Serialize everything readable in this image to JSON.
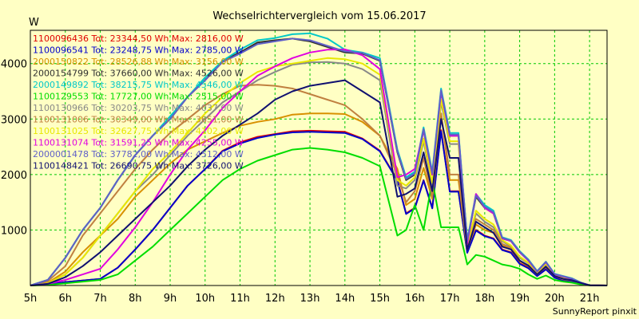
{
  "chart_data": {
    "type": "line",
    "title": "Wechselrichtervergleich vom 15.06.2017",
    "ylabel": "W",
    "footer": "SunnyReport pinxit",
    "ylim": [
      0,
      4600
    ],
    "yticks": [
      1000,
      2000,
      3000,
      4000
    ],
    "xlim": [
      5,
      21.5
    ],
    "xticks": [
      "5h",
      "6h",
      "7h",
      "8h",
      "9h",
      "10h",
      "11h",
      "12h",
      "13h",
      "14h",
      "15h",
      "16h",
      "17h",
      "18h",
      "19h",
      "20h",
      "21h"
    ],
    "grid": true,
    "legend_position": "top-left",
    "x": [
      5,
      5.5,
      6,
      6.5,
      7,
      7.5,
      8,
      8.5,
      9,
      9.5,
      10,
      10.5,
      11,
      11.5,
      12,
      12.5,
      13,
      13.5,
      14,
      14.5,
      15,
      15.5,
      15.75,
      16,
      16.25,
      16.5,
      16.75,
      17,
      17.25,
      17.5,
      17.75,
      18,
      18.25,
      18.5,
      18.75,
      19,
      19.25,
      19.5,
      19.75,
      20,
      20.25,
      20.5,
      20.75,
      21,
      21.5
    ],
    "series": [
      {
        "name": "1100096436",
        "color": "#e00000",
        "legend": "1100096436 Tot: 23344,50 Wh Max: 2816,00 W",
        "values": [
          0,
          20,
          60,
          90,
          120,
          320,
          650,
          1000,
          1400,
          1800,
          2100,
          2430,
          2580,
          2680,
          2730,
          2780,
          2790,
          2780,
          2770,
          2650,
          2430,
          1900,
          1300,
          1400,
          1900,
          1400,
          2800,
          1700,
          1700,
          600,
          1000,
          900,
          850,
          650,
          600,
          400,
          320,
          180,
          300,
          150,
          100,
          80,
          40,
          5,
          0
        ]
      },
      {
        "name": "1100096541",
        "color": "#0000cc",
        "legend": "1100096541 Tot: 23248,75 Wh Max: 2785,00 W",
        "values": [
          0,
          20,
          60,
          90,
          120,
          320,
          650,
          1000,
          1400,
          1800,
          2100,
          2420,
          2560,
          2660,
          2720,
          2760,
          2770,
          2760,
          2750,
          2640,
          2420,
          1890,
          1290,
          1390,
          1890,
          1390,
          2780,
          1690,
          1690,
          590,
          990,
          890,
          840,
          640,
          590,
          390,
          310,
          170,
          290,
          140,
          90,
          70,
          30,
          5,
          0
        ]
      },
      {
        "name": "2000150822",
        "color": "#d89000",
        "legend": "2000150822 Tot: 28526,88 Wh Max: 3156,00 W",
        "values": [
          0,
          50,
          250,
          600,
          900,
          1200,
          1600,
          1900,
          2200,
          2450,
          2600,
          2750,
          2880,
          2950,
          3000,
          3080,
          3100,
          3100,
          3090,
          2950,
          2700,
          2100,
          1450,
          1560,
          2120,
          1560,
          3100,
          1900,
          1900,
          650,
          1100,
          1000,
          950,
          720,
          660,
          440,
          350,
          200,
          330,
          170,
          110,
          90,
          45,
          5,
          0
        ]
      },
      {
        "name": "2000154799",
        "color": "#303030",
        "legend": "2000154799 Tot: 37660,00 Wh Max: 4526,00 W",
        "values": [
          0,
          100,
          500,
          1000,
          1400,
          1900,
          2350,
          2700,
          3000,
          3400,
          3700,
          4050,
          4200,
          4380,
          4420,
          4450,
          4400,
          4300,
          4200,
          4180,
          4050,
          2400,
          1900,
          2000,
          2800,
          2000,
          3500,
          2700,
          2700,
          800,
          1600,
          1400,
          1300,
          850,
          800,
          600,
          450,
          250,
          420,
          200,
          160,
          120,
          50,
          5,
          0
        ]
      },
      {
        "name": "2000149892",
        "color": "#00c8c8",
        "legend": "2000149892 Tot: 38215,75 Wh Max: 4546,00 W",
        "values": [
          0,
          100,
          500,
          1000,
          1400,
          1900,
          2350,
          2700,
          3050,
          3400,
          3750,
          4050,
          4250,
          4420,
          4460,
          4530,
          4546,
          4450,
          4250,
          4200,
          4100,
          2450,
          1950,
          2050,
          2850,
          2050,
          3550,
          2750,
          2750,
          820,
          1650,
          1450,
          1350,
          870,
          820,
          620,
          470,
          260,
          430,
          210,
          170,
          130,
          55,
          5,
          0
        ]
      },
      {
        "name": "1100129553",
        "color": "#00dd00",
        "legend": "1100129553 Tot: 17727,00 Wh Max: 2515,00 W",
        "values": [
          0,
          10,
          40,
          70,
          100,
          200,
          450,
          700,
          1000,
          1300,
          1600,
          1900,
          2100,
          2250,
          2350,
          2450,
          2480,
          2450,
          2400,
          2300,
          2150,
          900,
          1000,
          1450,
          1000,
          1900,
          1050,
          1050,
          1050,
          380,
          550,
          520,
          450,
          380,
          350,
          300,
          200,
          120,
          180,
          100,
          70,
          50,
          20,
          2,
          0
        ]
      },
      {
        "name": "1100130966",
        "color": "#888888",
        "legend": "1100130966 Tot: 30203,75 Wh Max: 4037,00 W",
        "values": [
          0,
          40,
          200,
          500,
          900,
          1300,
          1700,
          2000,
          2350,
          2700,
          3000,
          3300,
          3500,
          3700,
          3850,
          3980,
          4020,
          4030,
          4000,
          3900,
          3700,
          1800,
          1750,
          1900,
          2600,
          1800,
          3300,
          2550,
          2550,
          700,
          1300,
          1150,
          1050,
          800,
          700,
          500,
          400,
          220,
          380,
          180,
          140,
          100,
          45,
          5,
          0
        ]
      },
      {
        "name": "1100131006",
        "color": "#c08040",
        "legend": "1100131006 Tot: 30349,00 Wh Max: 3651,00 W",
        "values": [
          0,
          80,
          350,
          900,
          1300,
          1700,
          2100,
          2450,
          2750,
          3000,
          3250,
          3450,
          3600,
          3620,
          3600,
          3550,
          3450,
          3350,
          3250,
          3000,
          2700,
          2000,
          1500,
          1700,
          2300,
          1600,
          3100,
          2000,
          2000,
          650,
          1200,
          1100,
          1000,
          750,
          680,
          450,
          360,
          200,
          340,
          170,
          120,
          95,
          45,
          5,
          0
        ]
      },
      {
        "name": "1100131025",
        "color": "#e8e800",
        "legend": "1100131025 Tot: 32627,75 Wh Max: 4102,00 W",
        "values": [
          0,
          40,
          200,
          500,
          900,
          1300,
          1700,
          2100,
          2400,
          2750,
          3100,
          3400,
          3650,
          3850,
          3950,
          4000,
          4050,
          4100,
          4080,
          4000,
          3800,
          1900,
          1800,
          1950,
          2650,
          1850,
          3350,
          2600,
          2600,
          720,
          1350,
          1200,
          1100,
          820,
          720,
          520,
          410,
          230,
          390,
          190,
          150,
          110,
          48,
          5,
          0
        ]
      },
      {
        "name": "1100131074",
        "color": "#e000e0",
        "legend": "1100131074 Tot: 31591,25 Wh Max: 4255,00 W",
        "values": [
          0,
          30,
          100,
          200,
          300,
          650,
          1050,
          1500,
          2000,
          2450,
          2800,
          3200,
          3500,
          3780,
          3950,
          4100,
          4200,
          4250,
          4255,
          4150,
          3900,
          1950,
          2000,
          2100,
          2800,
          2000,
          3500,
          2700,
          2700,
          750,
          1650,
          1400,
          1300,
          850,
          800,
          600,
          450,
          250,
          420,
          200,
          160,
          120,
          50,
          5,
          0
        ]
      },
      {
        "name": "2000001478",
        "color": "#6060c8",
        "legend": "2000001478 Tot: 37782,00 Wh Max: 4512,00 W",
        "values": [
          0,
          100,
          500,
          1000,
          1400,
          1900,
          2350,
          2700,
          3000,
          3400,
          3700,
          4030,
          4180,
          4350,
          4400,
          4450,
          4420,
          4320,
          4220,
          4190,
          4060,
          2420,
          1920,
          2020,
          2820,
          2020,
          3520,
          2720,
          2720,
          810,
          1620,
          1420,
          1320,
          860,
          810,
          610,
          460,
          255,
          425,
          205,
          165,
          125,
          52,
          5,
          0
        ]
      },
      {
        "name": "1100148421",
        "color": "#101070",
        "legend": "1100148421 Tot: 26690,75 Wh Max: 3726,00 W",
        "values": [
          0,
          30,
          150,
          350,
          600,
          900,
          1200,
          1500,
          1800,
          2150,
          2450,
          2700,
          2900,
          3100,
          3350,
          3500,
          3600,
          3650,
          3700,
          3500,
          3300,
          1600,
          1650,
          1750,
          2400,
          1700,
          3000,
          2300,
          2300,
          650,
          1150,
          1050,
          950,
          700,
          650,
          450,
          360,
          200,
          340,
          170,
          120,
          95,
          45,
          5,
          0
        ]
      }
    ]
  }
}
